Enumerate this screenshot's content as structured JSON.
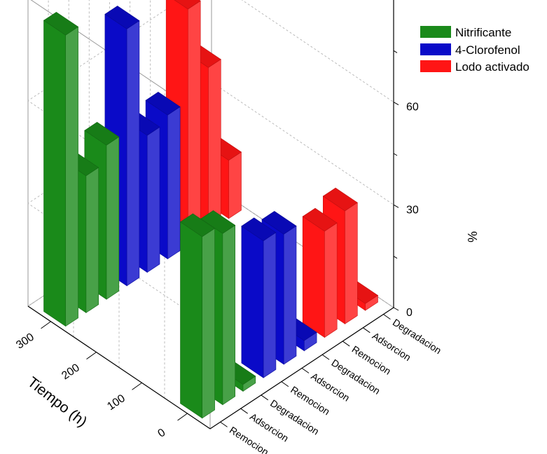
{
  "chart_data": {
    "type": "bar3d",
    "z_axis": {
      "label": "%",
      "ticks": [
        "0",
        "30",
        "60"
      ],
      "range": [
        0,
        90
      ]
    },
    "y_axis": {
      "label": "Tiempo (h)",
      "ticks": [
        "0",
        "100",
        "200",
        "300"
      ]
    },
    "x_axis": {
      "labels": [
        "Remocion",
        "Adsorcion",
        "Degradacion",
        "Remocion",
        "Adsorcion",
        "Degradacion",
        "Remocion",
        "Adsorcion",
        "Degradacion"
      ]
    },
    "series": [
      {
        "name": "Nitrificante",
        "color": "#1a8a1a",
        "times": [
          300,
          0
        ],
        "values": [
          [
            85,
            40,
            45
          ],
          [
            53,
            50,
            2
          ]
        ]
      },
      {
        "name": "4-Clorofenol",
        "color": "#0a0ac8",
        "times": [
          300,
          0
        ],
        "values": [
          [
            75,
            40,
            42
          ],
          [
            40,
            38,
            3
          ]
        ]
      },
      {
        "name": "Lodo activado",
        "color": "#ff1515",
        "times": [
          300,
          0
        ],
        "values": [
          [
            69,
            48,
            17
          ],
          [
            31,
            33,
            2
          ]
        ]
      }
    ],
    "legend": {
      "position": "top-right"
    },
    "grid": true
  }
}
